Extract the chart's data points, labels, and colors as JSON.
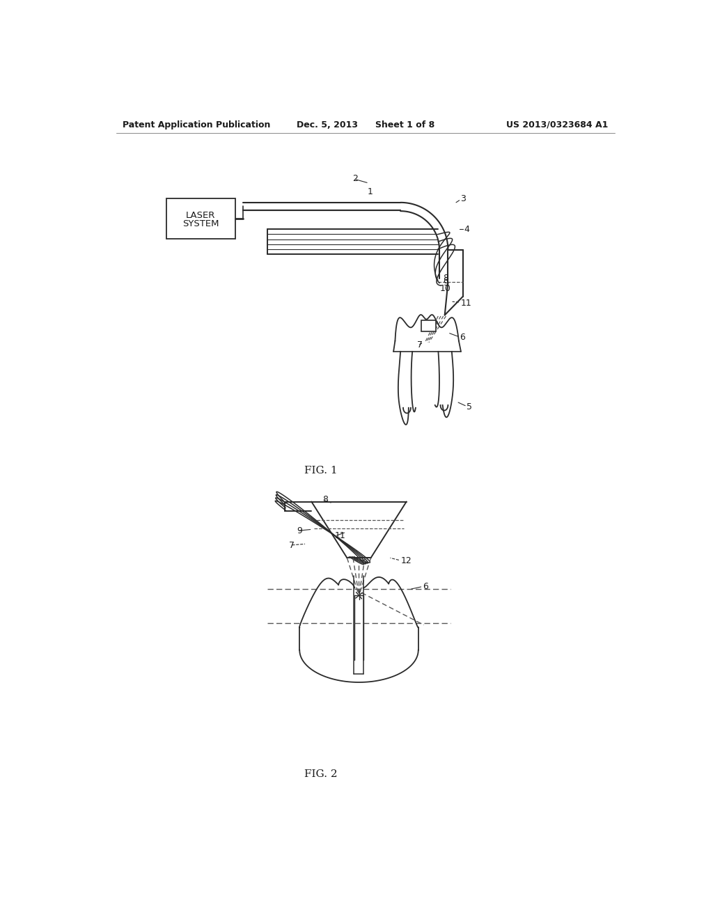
{
  "bg_color": "#ffffff",
  "line_color": "#2a2a2a",
  "dashed_color": "#555555",
  "header_left": "Patent Application Publication",
  "header_mid": "Dec. 5, 2013  Sheet 1 of 8",
  "header_right": "US 2013/0323684 A1",
  "fig1_label": "FIG. 1",
  "fig2_label": "FIG. 2",
  "laser_box_text": "LASER\nSYSTEM"
}
